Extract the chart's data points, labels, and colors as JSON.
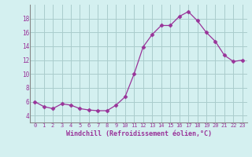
{
  "x": [
    0,
    1,
    2,
    3,
    4,
    5,
    6,
    7,
    8,
    9,
    10,
    11,
    12,
    13,
    14,
    15,
    16,
    17,
    18,
    19,
    20,
    21,
    22,
    23
  ],
  "y": [
    6.0,
    5.3,
    5.0,
    5.7,
    5.5,
    5.0,
    4.8,
    4.7,
    4.7,
    5.5,
    6.7,
    10.0,
    13.9,
    15.7,
    17.0,
    17.0,
    18.3,
    19.0,
    17.7,
    16.0,
    14.7,
    12.7,
    11.8,
    12.0
  ],
  "line_color": "#993399",
  "marker": "D",
  "marker_size": 2.5,
  "bg_color": "#d4f0f0",
  "grid_color": "#aacccc",
  "xlabel": "Windchill (Refroidissement éolien,°C)",
  "xlabel_color": "#993399",
  "tick_color": "#993399",
  "ylim": [
    3,
    20
  ],
  "xlim": [
    -0.5,
    23.5
  ],
  "yticks": [
    4,
    6,
    8,
    10,
    12,
    14,
    16,
    18
  ],
  "xticks": [
    0,
    1,
    2,
    3,
    4,
    5,
    6,
    7,
    8,
    9,
    10,
    11,
    12,
    13,
    14,
    15,
    16,
    17,
    18,
    19,
    20,
    21,
    22,
    23
  ],
  "xtick_labels": [
    "0",
    "1",
    "2",
    "3",
    "4",
    "5",
    "6",
    "7",
    "8",
    "9",
    "10",
    "11",
    "12",
    "13",
    "14",
    "15",
    "16",
    "17",
    "18",
    "19",
    "20",
    "21",
    "22",
    "23"
  ]
}
